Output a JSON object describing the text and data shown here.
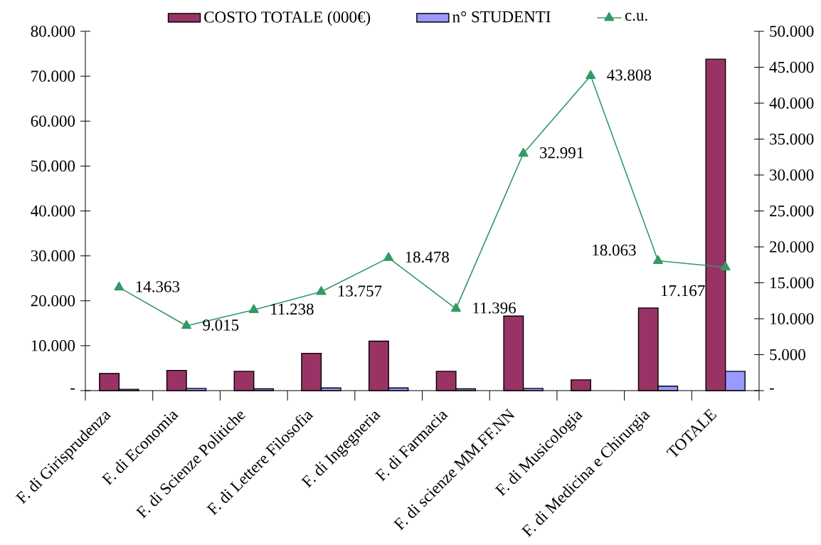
{
  "chart_data": {
    "type": "bar",
    "categories": [
      "F. di Girisprudenza",
      "F. di Economia",
      "F. di Scienze Politiche",
      "F. di Lettere Filosofia",
      "F. di Ingegneria",
      "F. di Farmacia",
      "F. di scienze MM.FF.NN",
      "F. di Musicologia",
      "F. di Medicina e Chirurgia",
      "TOTALE"
    ],
    "series": [
      {
        "name": "COSTO TOTALE (000€)",
        "color": "#993366",
        "values": [
          3800,
          4500,
          4300,
          8300,
          11000,
          4300,
          16600,
          2400,
          18400,
          73800
        ]
      },
      {
        "name": "n° STUDENTI",
        "color": "#9999ff",
        "values": [
          300,
          500,
          400,
          600,
          600,
          400,
          500,
          null,
          1000,
          4300
        ]
      },
      {
        "name": "c.u.",
        "type": "line",
        "axis": "y2",
        "color": "#339966",
        "marker": "triangle",
        "values": [
          14363,
          9015,
          11238,
          13757,
          18478,
          11396,
          32991,
          43808,
          18063,
          17167
        ],
        "value_labels": [
          "14.363",
          "9.015",
          "11.238",
          "13.757",
          "18.478",
          "11.396",
          "32.991",
          "43.808",
          "18.063",
          "17.167"
        ]
      }
    ],
    "ylim": [
      0,
      80000
    ],
    "yticks": [
      {
        "value": 0,
        "label": "-"
      },
      {
        "value": 10000,
        "label": "10.000"
      },
      {
        "value": 20000,
        "label": "20.000"
      },
      {
        "value": 30000,
        "label": "30.000"
      },
      {
        "value": 40000,
        "label": "40.000"
      },
      {
        "value": 50000,
        "label": "50.000"
      },
      {
        "value": 60000,
        "label": "60.000"
      },
      {
        "value": 70000,
        "label": "70.000"
      },
      {
        "value": 80000,
        "label": "80.000"
      }
    ],
    "y2lim": [
      0,
      50000
    ],
    "y2ticks": [
      {
        "value": 0,
        "label": "-"
      },
      {
        "value": 5000,
        "label": "5.000"
      },
      {
        "value": 10000,
        "label": "10.000"
      },
      {
        "value": 15000,
        "label": "15.000"
      },
      {
        "value": 20000,
        "label": "20.000"
      },
      {
        "value": 25000,
        "label": "25.000"
      },
      {
        "value": 30000,
        "label": "30.000"
      },
      {
        "value": 35000,
        "label": "35.000"
      },
      {
        "value": 40000,
        "label": "40.000"
      },
      {
        "value": 45000,
        "label": "45.000"
      },
      {
        "value": 50000,
        "label": "50.000"
      }
    ],
    "legend": "top"
  }
}
